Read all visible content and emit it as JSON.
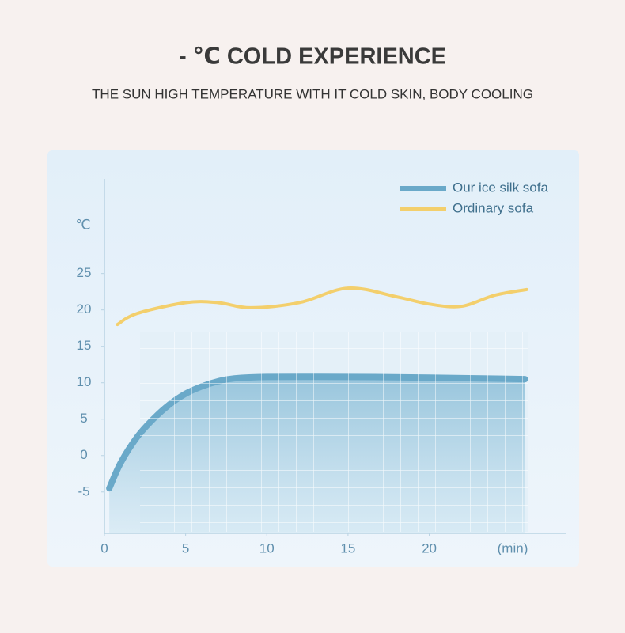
{
  "chart_data": {
    "type": "line",
    "title": "- ℃ COLD EXPERIENCE",
    "subtitle": "THE SUN HIGH TEMPERATURE WITH IT COLD SKIN, BODY COOLING",
    "y_label": "℃",
    "x_label": "(min)",
    "xlim": [
      0,
      28.5
    ],
    "xticks": [
      0,
      5,
      10,
      15,
      20
    ],
    "ylim": [
      -11,
      38
    ],
    "yticks": [
      -5,
      0,
      5,
      10,
      15,
      20,
      25
    ],
    "legend": "top-right",
    "series": [
      {
        "name": "Our ice silk sofa",
        "color": "#6aa9c9",
        "fill": "area",
        "x": [
          0.3,
          1,
          2,
          3,
          4,
          5,
          6,
          7,
          8,
          10,
          15,
          20,
          25.9
        ],
        "values": [
          -4.5,
          -1,
          2.5,
          5,
          7,
          8.5,
          9.5,
          10.2,
          10.6,
          10.8,
          10.8,
          10.7,
          10.5
        ]
      },
      {
        "name": "Ordinary sofa",
        "color": "#f3cf6c",
        "fill": "none",
        "x": [
          0.8,
          2,
          5,
          7,
          9,
          12,
          15,
          18,
          20,
          22,
          24,
          26
        ],
        "values": [
          18,
          19.5,
          21,
          21,
          20.3,
          21,
          23,
          21.8,
          20.8,
          20.5,
          22,
          22.8
        ]
      }
    ]
  }
}
